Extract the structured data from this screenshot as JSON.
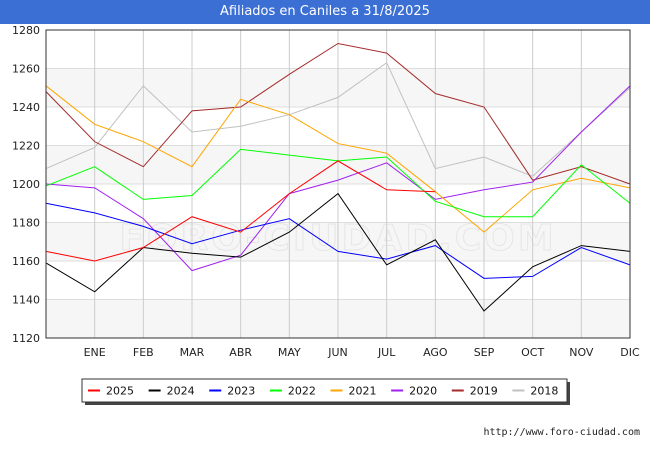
{
  "header": {
    "title": "Afiliados en Caniles a 31/8/2025"
  },
  "footer": {
    "url": "http://www.foro-ciudad.com"
  },
  "watermark": "FORO-CIUDAD.COM",
  "chart_data": {
    "type": "line",
    "title": "Afiliados en Caniles a 31/8/2025",
    "xlabel": "",
    "ylabel": "",
    "categories": [
      "",
      "ENE",
      "FEB",
      "MAR",
      "ABR",
      "MAY",
      "JUN",
      "JUL",
      "AGO",
      "SEP",
      "OCT",
      "NOV",
      "DIC"
    ],
    "ylim": [
      1120,
      1280
    ],
    "yticks": [
      1120,
      1140,
      1160,
      1180,
      1200,
      1220,
      1240,
      1260,
      1280
    ],
    "grid": true,
    "legend_position": "bottom",
    "series": [
      {
        "name": "2025",
        "color": "#ff0000",
        "values": [
          1165,
          1160,
          1167,
          1183,
          1175,
          1195,
          1212,
          1197,
          1196,
          null,
          null,
          null,
          null
        ]
      },
      {
        "name": "2024",
        "color": "#000000",
        "values": [
          1159,
          1144,
          1167,
          1164,
          1162,
          1175,
          1195,
          1158,
          1171,
          1134,
          1157,
          1168,
          1165
        ]
      },
      {
        "name": "2023",
        "color": "#0000ff",
        "values": [
          1190,
          1185,
          1178,
          1169,
          1176,
          1182,
          1165,
          1161,
          1168,
          1151,
          1152,
          1167,
          1158
        ]
      },
      {
        "name": "2022",
        "color": "#00ff00",
        "values": [
          1199,
          1209,
          1192,
          1194,
          1218,
          1215,
          1212,
          1214,
          1191,
          1183,
          1183,
          1210,
          1190
        ]
      },
      {
        "name": "2021",
        "color": "#ffa500",
        "values": [
          1251,
          1231,
          1222,
          1209,
          1244,
          1236,
          1221,
          1216,
          1196,
          1175,
          1197,
          1203,
          1198
        ]
      },
      {
        "name": "2020",
        "color": "#a020f0",
        "values": [
          1200,
          1198,
          1182,
          1155,
          1163,
          1195,
          1202,
          1211,
          1192,
          1197,
          1201,
          1227,
          1251
        ]
      },
      {
        "name": "2019",
        "color": "#a52a2a",
        "values": [
          1248,
          1222,
          1209,
          1238,
          1240,
          1257,
          1273,
          1268,
          1247,
          1240,
          1202,
          1209,
          1200
        ]
      },
      {
        "name": "2018",
        "color": "#c0c0c0",
        "values": [
          1208,
          1219,
          1251,
          1227,
          1230,
          1236,
          1245,
          1263,
          1208,
          1214,
          1204,
          1227,
          1250
        ]
      }
    ]
  }
}
